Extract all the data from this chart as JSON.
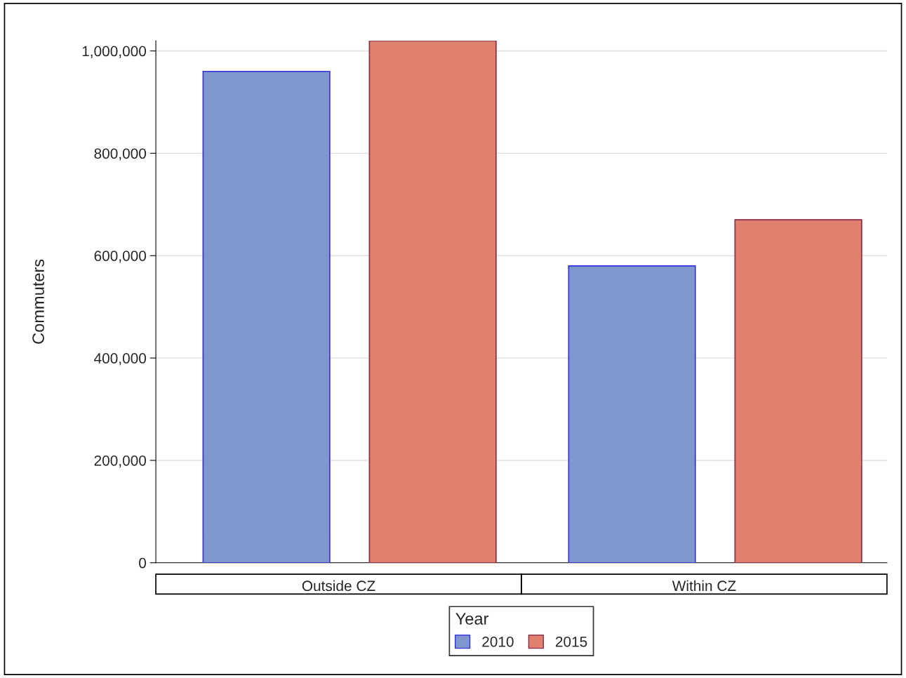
{
  "chart_data": {
    "type": "bar",
    "ylabel": "Commuters",
    "categories": [
      "Outside CZ",
      "Within CZ"
    ],
    "series": [
      {
        "name": "2010",
        "color": "#7f97cc",
        "values": [
          960000,
          580000
        ]
      },
      {
        "name": "2015",
        "color": "#e0806f",
        "values": [
          1020000,
          670000
        ]
      }
    ],
    "ylim": [
      0,
      1020000
    ],
    "yticks": [
      {
        "value": 0,
        "label": "0"
      },
      {
        "value": 200000,
        "label": "200,000"
      },
      {
        "value": 400000,
        "label": "400,000"
      },
      {
        "value": 600000,
        "label": "600,000"
      },
      {
        "value": 800000,
        "label": "800,000"
      },
      {
        "value": 1000000,
        "label": "1,000,000"
      }
    ],
    "grid": "y",
    "legend": "bottom",
    "legend_title": "Year"
  }
}
